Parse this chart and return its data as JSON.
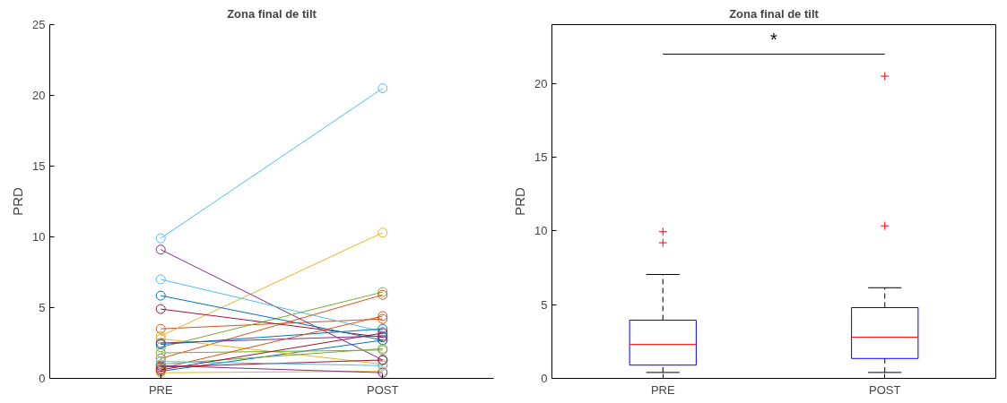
{
  "chart_data": [
    {
      "type": "line",
      "title": "Zona final de tilt",
      "ylabel": "PRD",
      "categories": [
        "PRE",
        "POST"
      ],
      "ylim": [
        0,
        25
      ],
      "yticks": [
        0,
        5,
        10,
        15,
        20,
        25
      ],
      "marker": "circle",
      "grid": false,
      "series": [
        {
          "color": "#0072bd",
          "values": [
            0.5,
            2.7
          ]
        },
        {
          "color": "#d95319",
          "values": [
            3.5,
            4.2
          ]
        },
        {
          "color": "#edb120",
          "values": [
            3.0,
            10.3
          ]
        },
        {
          "color": "#7e2f8e",
          "values": [
            9.1,
            1.3
          ]
        },
        {
          "color": "#77ac30",
          "values": [
            2.2,
            6.1
          ]
        },
        {
          "color": "#4dbeee",
          "values": [
            9.9,
            20.5
          ]
        },
        {
          "color": "#a2142f",
          "values": [
            4.9,
            2.9
          ]
        },
        {
          "color": "#0072bd",
          "values": [
            5.85,
            2.7
          ]
        },
        {
          "color": "#d95319",
          "values": [
            1.4,
            5.9
          ]
        },
        {
          "color": "#edb120",
          "values": [
            2.8,
            1.0
          ]
        },
        {
          "color": "#7e2f8e",
          "values": [
            2.5,
            3.0
          ]
        },
        {
          "color": "#77ac30",
          "values": [
            1.8,
            2.0
          ]
        },
        {
          "color": "#4dbeee",
          "values": [
            7.0,
            3.3
          ]
        },
        {
          "color": "#a2142f",
          "values": [
            0.8,
            1.3
          ]
        },
        {
          "color": "#0072bd",
          "values": [
            2.4,
            3.5
          ]
        },
        {
          "color": "#d95319",
          "values": [
            0.7,
            4.4
          ]
        },
        {
          "color": "#edb120",
          "values": [
            0.4,
            0.5
          ]
        },
        {
          "color": "#7e2f8e",
          "values": [
            0.9,
            0.4
          ]
        },
        {
          "color": "#77ac30",
          "values": [
            1.0,
            2.1
          ]
        },
        {
          "color": "#4dbeee",
          "values": [
            1.2,
            0.9
          ]
        },
        {
          "color": "#a2142f",
          "values": [
            0.6,
            3.2
          ]
        }
      ]
    },
    {
      "type": "box",
      "title": "Zona final de tilt",
      "ylabel": "PRD",
      "categories": [
        "PRE",
        "POST"
      ],
      "ylim": [
        0,
        24
      ],
      "yticks": [
        0,
        5,
        10,
        15,
        20
      ],
      "grid": false,
      "annotations": [
        "*"
      ],
      "boxes": [
        {
          "low": 0.4,
          "q1": 0.9,
          "median": 2.3,
          "q3": 3.95,
          "high": 7.05,
          "outliers": [
            9.2,
            9.95
          ]
        },
        {
          "low": 0.4,
          "q1": 1.35,
          "median": 2.8,
          "q3": 4.8,
          "high": 6.15,
          "outliers": [
            10.35,
            20.5
          ]
        }
      ]
    }
  ]
}
